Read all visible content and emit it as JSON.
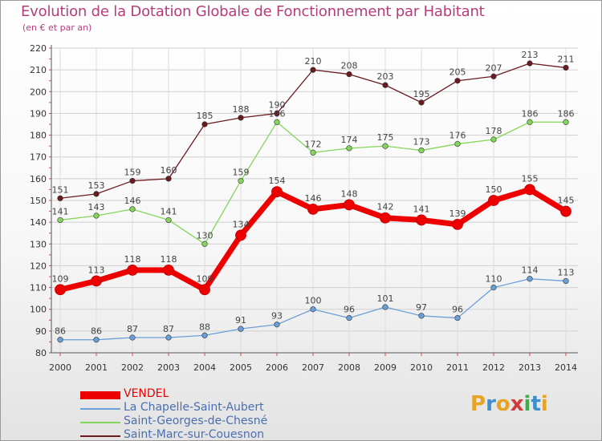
{
  "title": "Evolution de la Dotation Globale de Fonctionnement par Habitant",
  "subtitle": "(en € et par an)",
  "logo": {
    "letters": [
      "P",
      "r",
      "o",
      "x",
      "i",
      "t",
      "i"
    ],
    "colors": [
      "#e8a323",
      "#3f8ed0",
      "#e8a323",
      "#d23a3a",
      "#3fae4a",
      "#3f8ed0",
      "#e8a323"
    ]
  },
  "chart_data": {
    "type": "line",
    "x": [
      "2000",
      "2001",
      "2002",
      "2003",
      "2004",
      "2005",
      "2006",
      "2007",
      "2008",
      "2009",
      "2010",
      "2011",
      "2012",
      "2013",
      "2014"
    ],
    "ylim": [
      80,
      220
    ],
    "yticks": [
      80,
      90,
      100,
      110,
      120,
      130,
      140,
      150,
      160,
      170,
      180,
      190,
      200,
      210,
      220
    ],
    "grid": true,
    "legend_position": "bottom-left",
    "series": [
      {
        "name": "Saint-Marc-sur-Couesnon",
        "color": "#6b1a1f",
        "values": [
          151,
          153,
          159,
          160,
          185,
          188,
          190,
          210,
          208,
          203,
          195,
          205,
          207,
          213,
          211
        ]
      },
      {
        "name": "Saint-Georges-de-Chesné",
        "color": "#84d65a",
        "values": [
          141,
          143,
          146,
          141,
          130,
          159,
          186,
          172,
          174,
          175,
          173,
          176,
          178,
          186,
          186
        ]
      },
      {
        "name": "La Chapelle-Saint-Aubert",
        "color": "#6a9fd8",
        "values": [
          86,
          86,
          87,
          87,
          88,
          91,
          93,
          100,
          96,
          101,
          97,
          96,
          110,
          114,
          113
        ]
      },
      {
        "name": "VENDEL",
        "color": "#ee0000",
        "values": [
          109,
          113,
          118,
          118,
          109,
          134,
          154,
          146,
          148,
          142,
          141,
          139,
          150,
          155,
          145
        ]
      }
    ],
    "legend_order": [
      "VENDEL",
      "La Chapelle-Saint-Aubert",
      "Saint-Georges-de-Chesné",
      "Saint-Marc-sur-Couesnon"
    ]
  }
}
